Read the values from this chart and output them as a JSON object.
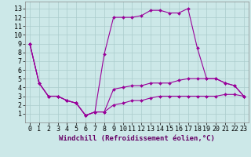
{
  "xlabel": "Windchill (Refroidissement éolien,°C)",
  "background_color": "#cce8e8",
  "grid_color": "#aacccc",
  "line_color": "#990099",
  "xlim": [
    -0.5,
    23.5
  ],
  "ylim": [
    0.0,
    13.8
  ],
  "xticks": [
    0,
    1,
    2,
    3,
    4,
    5,
    6,
    7,
    8,
    9,
    10,
    11,
    12,
    13,
    14,
    15,
    16,
    17,
    18,
    19,
    20,
    21,
    22,
    23
  ],
  "yticks": [
    1,
    2,
    3,
    4,
    5,
    6,
    7,
    8,
    9,
    10,
    11,
    12,
    13
  ],
  "line1_y": [
    9.0,
    4.5,
    3.0,
    3.0,
    2.5,
    2.2,
    0.8,
    1.2,
    7.8,
    12.0,
    12.0,
    12.0,
    12.2,
    12.8,
    12.8,
    12.5,
    12.5,
    13.0,
    8.5,
    5.0,
    5.0,
    4.5,
    4.2,
    3.0
  ],
  "line2_y": [
    9.0,
    4.5,
    3.0,
    3.0,
    2.5,
    2.2,
    0.8,
    1.2,
    1.2,
    3.8,
    4.0,
    4.2,
    4.2,
    4.5,
    4.5,
    4.5,
    4.8,
    5.0,
    5.0,
    5.0,
    5.0,
    4.5,
    4.2,
    3.0
  ],
  "line3_y": [
    9.0,
    4.5,
    3.0,
    3.0,
    2.5,
    2.2,
    0.8,
    1.2,
    1.2,
    2.0,
    2.2,
    2.5,
    2.5,
    2.8,
    3.0,
    3.0,
    3.0,
    3.0,
    3.0,
    3.0,
    3.0,
    3.2,
    3.2,
    3.0
  ],
  "tick_fontsize": 6.0,
  "xlabel_fontsize": 6.5
}
